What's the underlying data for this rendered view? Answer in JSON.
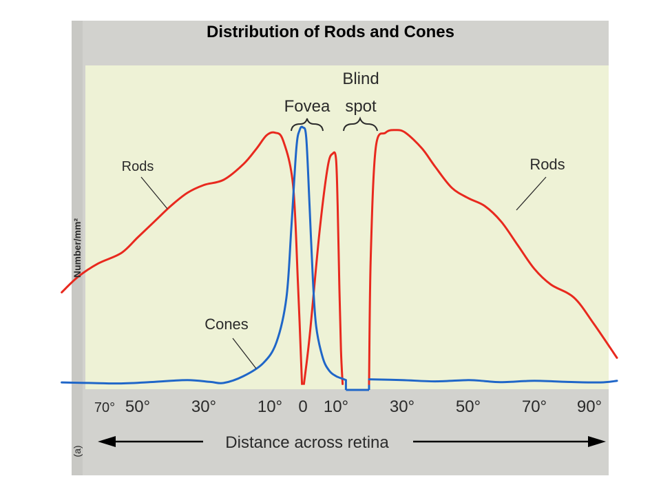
{
  "slide": {
    "title": "Distribution of Rods and Cones"
  },
  "colors": {
    "page_bg": "#c8c8c4",
    "plot_bg": "#eef2d6",
    "rods": "#e8291e",
    "cones": "#1f66c8",
    "ink": "#2a2a2a"
  },
  "chart_data": {
    "type": "line",
    "title": "",
    "xlabel": "Distance across retina",
    "ylabel": "Number/mm²",
    "panel_label": "(a)",
    "x_ticks": [
      "70°",
      "50°",
      "30°",
      "10°",
      "0",
      "10°",
      "30°",
      "50°",
      "70°",
      "90°"
    ],
    "x_tick_values": [
      -70,
      -50,
      -30,
      -10,
      0,
      10,
      30,
      50,
      70,
      90
    ],
    "xlim": [
      -75,
      95
    ],
    "ylim": [
      0,
      100
    ],
    "y_scale": "relative, unlabeled",
    "grid": false,
    "annotations": [
      {
        "id": "fovea",
        "text": "Fovea",
        "x_range": [
          -2,
          2
        ]
      },
      {
        "id": "blind",
        "lines": [
          "Blind",
          "spot"
        ],
        "x_range": [
          13,
          20
        ]
      }
    ],
    "series": [
      {
        "name": "Rods",
        "labels": [
          "Rods",
          "Rods"
        ],
        "color": "#e8291e",
        "segments": [
          {
            "x": [
              -73,
              -68,
              -62,
              -55,
              -50,
              -45,
              -40,
              -35,
              -30,
              -24,
              -18,
              -14,
              -11,
              -8.5,
              -6,
              -3,
              -1.5,
              -0.3
            ],
            "y": [
              37,
              43,
              48,
              52,
              58,
              64,
              70,
              75,
              78,
              80,
              86,
              92,
              97,
              98,
              95,
              78,
              40,
              2
            ]
          },
          {
            "x": [
              0.3,
              2,
              5,
              7.5,
              9,
              10,
              10.5,
              11,
              11.5,
              12
            ],
            "y": [
              2,
              20,
              60,
              85,
              90,
              88,
              70,
              40,
              15,
              2
            ]
          },
          {
            "x": [
              20,
              20.5,
              22,
              25,
              28,
              31,
              36,
              40,
              45,
              50,
              55,
              60,
              65,
              70,
              75,
              82,
              88,
              95
            ],
            "y": [
              2,
              50,
              92,
              98,
              99,
              98,
              92,
              85,
              77,
              73,
              70,
              64,
              55,
              46,
              40,
              35,
              25,
              12
            ]
          }
        ]
      },
      {
        "name": "Cones",
        "labels": [
          "Cones"
        ],
        "color": "#1f66c8",
        "segments": [
          {
            "x": [
              -73,
              -65,
              -55,
              -45,
              -35,
              -28,
              -24,
              -18,
              -12,
              -8,
              -5,
              -3.5,
              -2,
              -1,
              0,
              1,
              2,
              3,
              4,
              6,
              8,
              10,
              12,
              13
            ],
            "y": [
              2.6,
              2.4,
              2.2,
              2.8,
              3.5,
              2.8,
              2.4,
              5,
              10,
              18,
              35,
              62,
              92,
              99,
              100,
              96,
              70,
              42,
              24,
              12,
              7,
              5,
              4,
              3.5
            ]
          },
          {
            "x": [
              20,
              30,
              40,
              50,
              55,
              60,
              70,
              80,
              90,
              95
            ],
            "y": [
              3.8,
              3.5,
              3,
              3.5,
              3.1,
              2.7,
              3.2,
              2.8,
              2.6,
              3.2
            ]
          }
        ]
      }
    ]
  }
}
